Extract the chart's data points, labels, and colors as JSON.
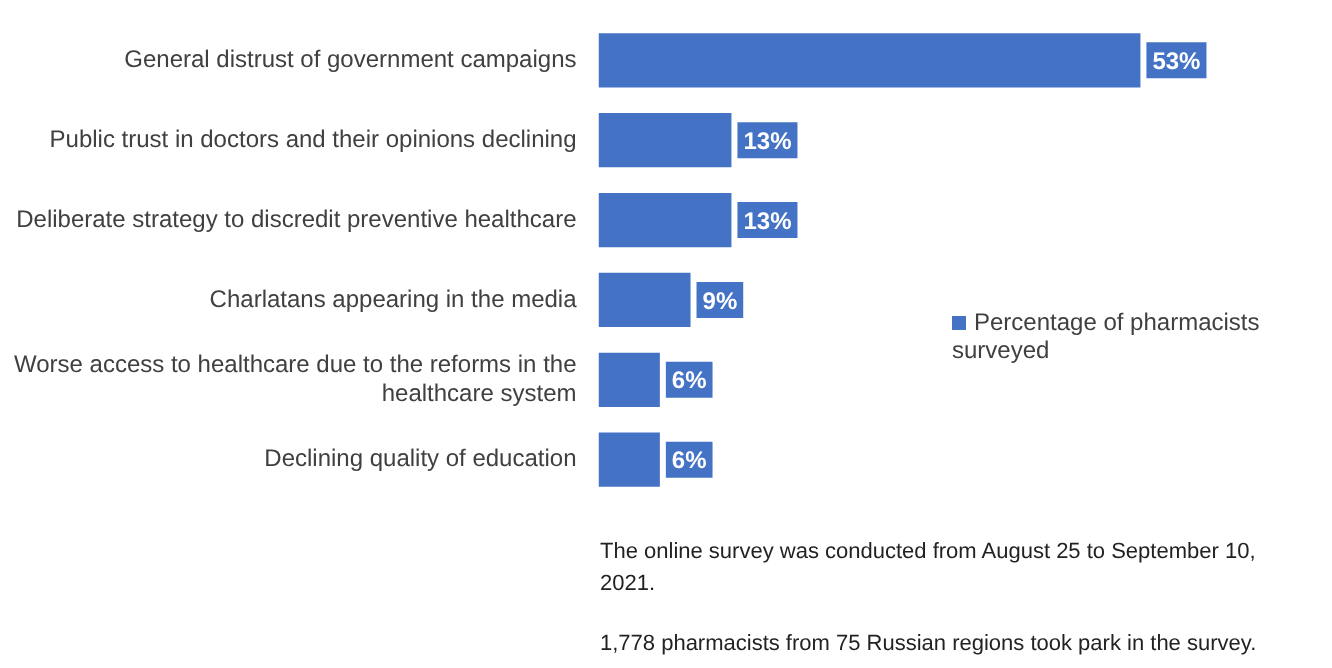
{
  "chart_data": {
    "type": "bar",
    "orientation": "horizontal",
    "categories": [
      "General distrust of government campaigns",
      "Public trust in doctors and their opinions declining",
      "Deliberate strategy to discredit preventive healthcare",
      "Charlatans appearing in the media",
      "Worse access to healthcare due to the reforms in the healthcare system",
      "Declining quality of education"
    ],
    "series": [
      {
        "name": "Percentage of pharmacists surveyed",
        "color": "#4472c4",
        "values": [
          53,
          13,
          13,
          9,
          6,
          6
        ],
        "value_labels": [
          "53%",
          "13%",
          "13%",
          "9%",
          "6%",
          "6%"
        ]
      }
    ],
    "legend": "right",
    "annotations": [
      "The online survey was conducted from August 25 to September 10, 2021.",
      "1,778 pharmacists from 75 Russian regions took park in the survey."
    ]
  }
}
